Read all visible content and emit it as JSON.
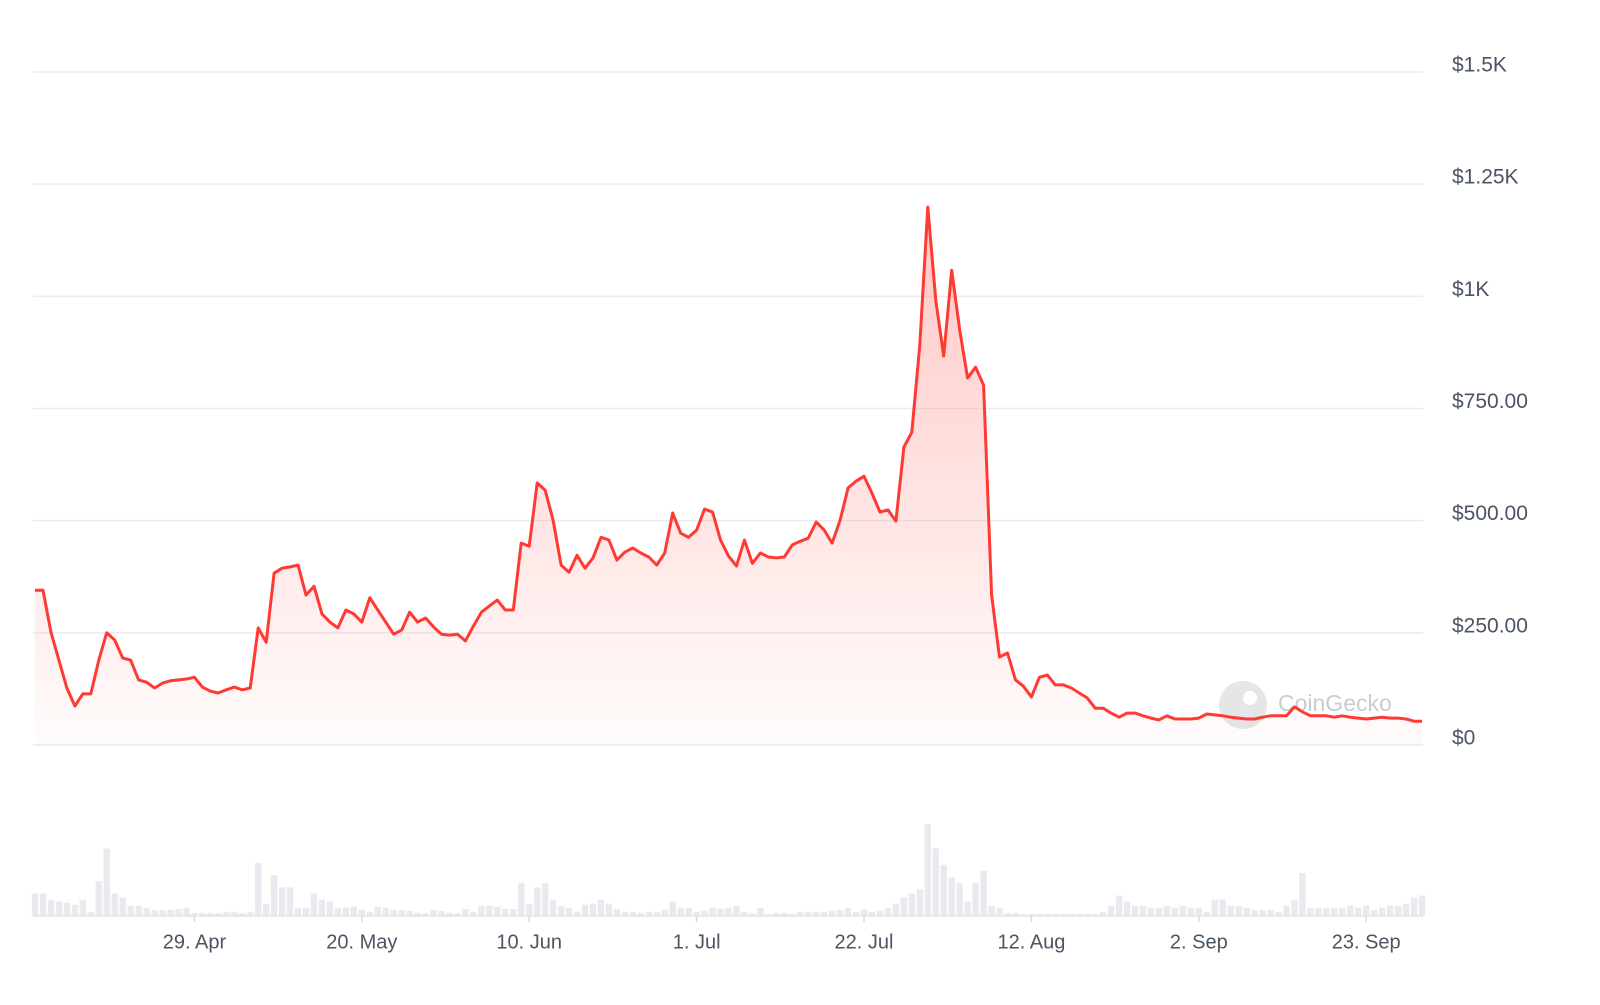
{
  "chart_data": {
    "type": "line",
    "x": [
      "9. Apr",
      "10. Apr",
      "11. Apr",
      "12. Apr",
      "13. Apr",
      "14. Apr",
      "15. Apr",
      "16. Apr",
      "17. Apr",
      "18. Apr",
      "19. Apr",
      "20. Apr",
      "21. Apr",
      "22. Apr",
      "23. Apr",
      "24. Apr",
      "25. Apr",
      "26. Apr",
      "27. Apr",
      "28. Apr",
      "29. Apr",
      "30. Apr",
      "1. May",
      "2. May",
      "3. May",
      "4. May",
      "5. May",
      "6. May",
      "7. May",
      "8. May",
      "9. May",
      "10. May",
      "11. May",
      "12. May",
      "13. May",
      "14. May",
      "15. May",
      "16. May",
      "17. May",
      "18. May",
      "19. May",
      "20. May",
      "21. May",
      "22. May",
      "23. May",
      "24. May",
      "25. May",
      "26. May",
      "27. May",
      "28. May",
      "29. May",
      "30. May",
      "31. May",
      "1. Jun",
      "2. Jun",
      "3. Jun",
      "4. Jun",
      "5. Jun",
      "6. Jun",
      "7. Jun",
      "8. Jun",
      "9. Jun",
      "10. Jun",
      "11. Jun",
      "12. Jun",
      "13. Jun",
      "14. Jun",
      "15. Jun",
      "16. Jun",
      "17. Jun",
      "18. Jun",
      "19. Jun",
      "20. Jun",
      "21. Jun",
      "22. Jun",
      "23. Jun",
      "24. Jun",
      "25. Jun",
      "26. Jun",
      "27. Jun",
      "28. Jun",
      "29. Jun",
      "30. Jun",
      "1. Jul",
      "2. Jul",
      "3. Jul",
      "4. Jul",
      "5. Jul",
      "6. Jul",
      "7. Jul",
      "8. Jul",
      "9. Jul",
      "10. Jul",
      "11. Jul",
      "12. Jul",
      "13. Jul",
      "14. Jul",
      "15. Jul",
      "16. Jul",
      "17. Jul",
      "18. Jul",
      "19. Jul",
      "20. Jul",
      "21. Jul",
      "22. Jul",
      "23. Jul",
      "24. Jul",
      "25. Jul",
      "26. Jul",
      "27. Jul",
      "28. Jul",
      "29. Jul",
      "30. Jul",
      "31. Jul",
      "1. Aug",
      "2. Aug",
      "3. Aug",
      "4. Aug",
      "5. Aug",
      "6. Aug",
      "7. Aug",
      "8. Aug",
      "9. Aug",
      "10. Aug",
      "11. Aug",
      "12. Aug",
      "13. Aug",
      "14. Aug",
      "15. Aug",
      "16. Aug",
      "17. Aug",
      "18. Aug",
      "19. Aug",
      "20. Aug",
      "21. Aug",
      "22. Aug",
      "23. Aug",
      "24. Aug",
      "25. Aug",
      "26. Aug",
      "27. Aug",
      "28. Aug",
      "29. Aug",
      "30. Aug",
      "31. Aug",
      "1. Sep",
      "2. Sep",
      "3. Sep",
      "4. Sep",
      "5. Sep",
      "6. Sep",
      "7. Sep",
      "8. Sep",
      "9. Sep",
      "10. Sep",
      "11. Sep",
      "12. Sep",
      "13. Sep",
      "14. Sep",
      "15. Sep",
      "16. Sep",
      "17. Sep",
      "18. Sep",
      "19. Sep",
      "20. Sep",
      "21. Sep",
      "22. Sep",
      "23. Sep",
      "24. Sep",
      "25. Sep",
      "26. Sep",
      "27. Sep",
      "28. Sep",
      "29. Sep",
      "30. Sep"
    ],
    "series": [
      {
        "color": "#ff3a33",
        "values": [
          345,
          345,
          252,
          189,
          127,
          87,
          114,
          114,
          189,
          250,
          234,
          194,
          189,
          145,
          140,
          127,
          138,
          143,
          145,
          147,
          151,
          129,
          120,
          116,
          123,
          129,
          123,
          127,
          261,
          229,
          383,
          394,
          397,
          401,
          334,
          354,
          292,
          274,
          261,
          301,
          292,
          274,
          328,
          301,
          274,
          247,
          256,
          296,
          274,
          283,
          263,
          247,
          245,
          247,
          232,
          265,
          296,
          310,
          323,
          301,
          301,
          450,
          443,
          584,
          568,
          501,
          401,
          385,
          423,
          394,
          417,
          463,
          457,
          412,
          430,
          439,
          428,
          419,
          401,
          428,
          517,
          472,
          463,
          479,
          526,
          519,
          457,
          421,
          399,
          457,
          405,
          428,
          419,
          417,
          419,
          446,
          454,
          461,
          497,
          479,
          450,
          501,
          573,
          588,
          599,
          561,
          519,
          524,
          499,
          664,
          697,
          891,
          1199,
          991,
          867,
          1058,
          925,
          818,
          842,
          802,
          334,
          196,
          205,
          145,
          131,
          107,
          151,
          156,
          134,
          134,
          127,
          116,
          105,
          82,
          82,
          71,
          62,
          71,
          71,
          65,
          60,
          56,
          65,
          58,
          58,
          58,
          60,
          69,
          67,
          65,
          62,
          60,
          58,
          58,
          62,
          65,
          65,
          65,
          85,
          74,
          65,
          65,
          65,
          62,
          65,
          62,
          60,
          58,
          60,
          62,
          60,
          60,
          58,
          53,
          53
        ]
      }
    ],
    "volume": {
      "color": "#e9e9f0",
      "values": [
        22,
        22,
        16,
        14,
        13,
        11,
        16,
        4,
        34,
        66,
        22,
        18,
        10,
        10,
        8,
        6,
        6,
        6,
        7,
        8,
        3,
        3,
        3,
        3,
        4,
        4,
        3,
        4,
        52,
        12,
        40,
        28,
        28,
        8,
        8,
        22,
        16,
        14,
        8,
        8,
        9,
        6,
        4,
        9,
        8,
        6,
        6,
        5,
        3,
        3,
        6,
        5,
        3,
        3,
        7,
        4,
        10,
        10,
        9,
        7,
        7,
        32,
        12,
        28,
        32,
        16,
        10,
        8,
        4,
        11,
        12,
        16,
        12,
        7,
        4,
        4,
        3,
        4,
        4,
        6,
        14,
        8,
        8,
        4,
        5,
        8,
        7,
        8,
        10,
        4,
        3,
        8,
        2,
        3,
        3,
        2,
        4,
        4,
        4,
        4,
        5,
        6,
        8,
        4,
        6,
        4,
        5,
        8,
        12,
        18,
        22,
        26,
        90,
        66,
        50,
        38,
        32,
        14,
        32,
        44,
        10,
        8,
        3,
        3,
        2,
        2,
        2,
        2,
        2,
        2,
        2,
        2,
        2,
        2,
        4,
        10,
        20,
        14,
        10,
        10,
        8,
        8,
        10,
        8,
        10,
        8,
        8,
        4,
        16,
        16,
        10,
        10,
        8,
        6,
        6,
        6,
        4,
        10,
        16,
        42,
        8,
        8,
        8,
        8,
        8,
        10,
        8,
        10,
        6,
        8,
        10,
        10,
        12,
        18,
        20
      ]
    },
    "xticks": [
      "29. Apr",
      "20. May",
      "10. Jun",
      "1. Jul",
      "22. Jul",
      "12. Aug",
      "2. Sep",
      "23. Sep"
    ],
    "ylim": [
      0,
      1500
    ],
    "yticks": [
      {
        "value": 0,
        "label": "$0"
      },
      {
        "value": 250,
        "label": "$250.00"
      },
      {
        "value": 500,
        "label": "$500.00"
      },
      {
        "value": 750,
        "label": "$750.00"
      },
      {
        "value": 1000,
        "label": "$1K"
      },
      {
        "value": 1250,
        "label": "$1.25K"
      },
      {
        "value": 1500,
        "label": "$1.5K"
      }
    ],
    "grid": true,
    "watermark": "CoinGecko"
  }
}
